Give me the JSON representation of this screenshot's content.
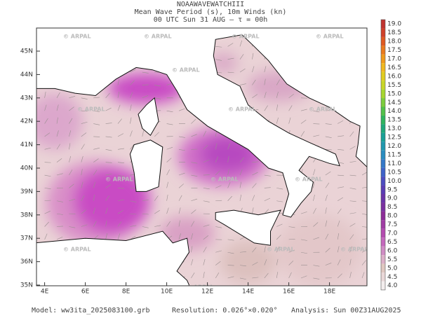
{
  "header": {
    "lines": [
      "NOAAWAVEWATCHIII",
      "Mean Wave Period (s), 10m Winds (kn)",
      "00 UTC Sun 31 AUG  —  τ = 00h"
    ]
  },
  "watermark": "© ARPAL",
  "lat_labels": [
    "45N",
    "44N",
    "43N",
    "42N",
    "41N",
    "40N",
    "39N",
    "38N",
    "37N",
    "36N",
    "35N"
  ],
  "lon_labels": [
    "4E",
    "6E",
    "8E",
    "10E",
    "12E",
    "14E",
    "16E",
    "18E"
  ],
  "colorbar": {
    "labels": [
      "19.0",
      "18.5",
      "18.0",
      "17.5",
      "17.0",
      "16.5",
      "16.0",
      "15.5",
      "15.0",
      "14.5",
      "14.0",
      "13.5",
      "13.0",
      "12.5",
      "12.0",
      "11.5",
      "11.0",
      "10.5",
      "10.0",
      "9.5",
      "9.0",
      "8.5",
      "8.0",
      "7.5",
      "7.0",
      "6.5",
      "6.0",
      "5.5",
      "5.0",
      "4.5",
      "4.0"
    ]
  },
  "footer": {
    "model": "Model: ww3ita_2025083100.grb",
    "resolution": "Resolution: 0.026°×0.020°",
    "analysis": "Analysis: Sun 00Z31AUG2025"
  }
}
